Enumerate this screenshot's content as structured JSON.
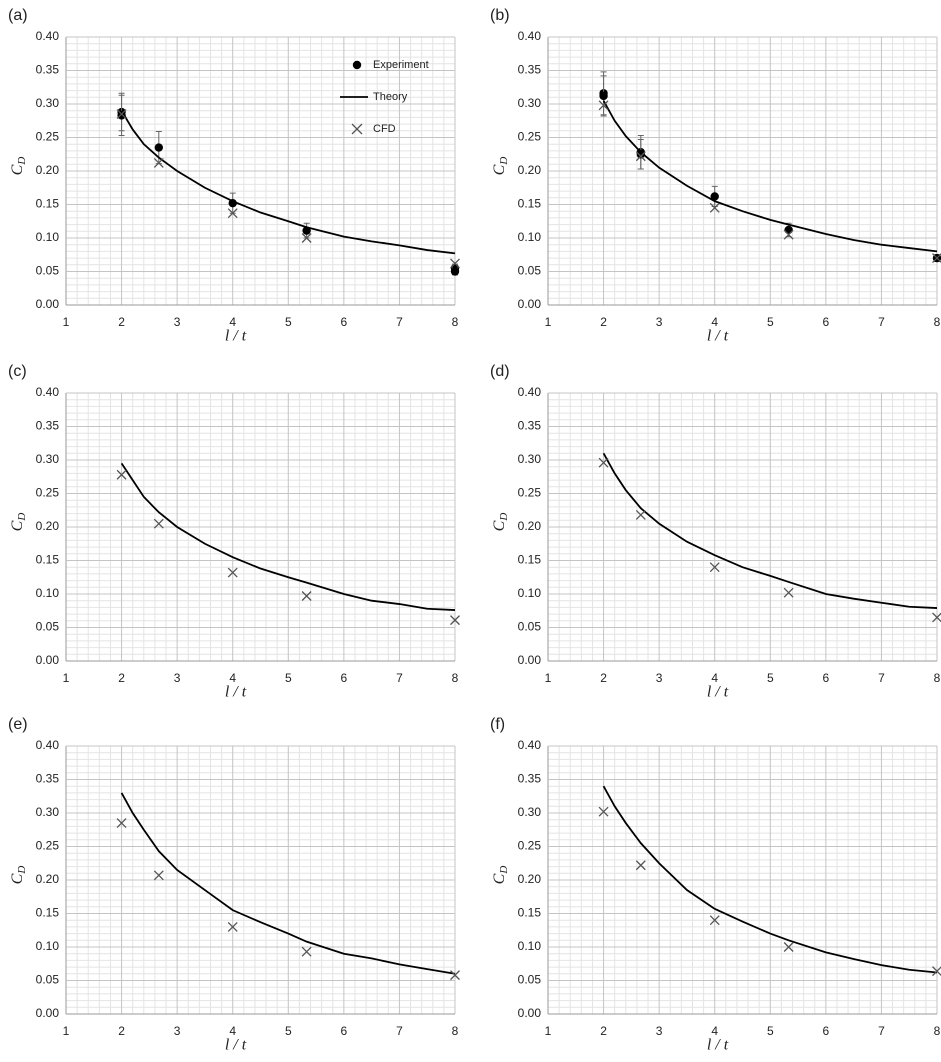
{
  "chart_data": [
    {
      "type": "scatter-line",
      "panel_label": "(a)",
      "ylabel": "C",
      "ylabel_sub": "D",
      "xlabel": "l / t",
      "xlim": [
        1,
        8
      ],
      "xticks": [
        1,
        2,
        3,
        4,
        5,
        6,
        7,
        8
      ],
      "ylim": [
        0,
        0.4
      ],
      "yticks": [
        {
          "value": 0,
          "label": "0.00"
        },
        {
          "value": 0.05,
          "label": "0.05"
        },
        {
          "value": 0.1,
          "label": "0.10"
        },
        {
          "value": 0.15,
          "label": "0.15"
        },
        {
          "value": 0.2,
          "label": "0.20"
        },
        {
          "value": 0.25,
          "label": "0.25"
        },
        {
          "value": 0.3,
          "label": "0.30"
        },
        {
          "value": 0.35,
          "label": "0.35"
        },
        {
          "value": 0.4,
          "label": "0.40"
        }
      ],
      "grid": true,
      "minor_grid": 5,
      "legend": "top-right",
      "series": [
        {
          "name": "Experiment",
          "type": "points",
          "color": "#000000",
          "x": [
            2,
            2,
            2.67,
            4,
            5.33,
            8,
            8
          ],
          "values": [
            0.288,
            0.283,
            0.235,
            0.152,
            0.111,
            0.055,
            0.05
          ],
          "errors": [
            0.028,
            0.03,
            0.024,
            0.015,
            0.011,
            0.006,
            0.005
          ]
        },
        {
          "name": "Theory",
          "type": "line",
          "color": "#000000",
          "x": [
            2,
            2.2,
            2.4,
            2.67,
            3,
            3.5,
            4,
            4.5,
            5,
            5.33,
            6,
            6.5,
            7,
            7.5,
            8
          ],
          "values": [
            0.29,
            0.262,
            0.24,
            0.22,
            0.2,
            0.175,
            0.155,
            0.138,
            0.125,
            0.116,
            0.102,
            0.095,
            0.089,
            0.082,
            0.077
          ]
        },
        {
          "name": "CFD",
          "type": "cross",
          "color": "#555555",
          "x": [
            2,
            2.67,
            4,
            5.33,
            8
          ],
          "values": [
            0.285,
            0.212,
            0.137,
            0.1,
            0.062
          ]
        }
      ]
    },
    {
      "type": "scatter-line",
      "panel_label": "(b)",
      "ylabel": "C",
      "ylabel_sub": "D",
      "xlabel": "l / t",
      "xlim": [
        1,
        8
      ],
      "xticks": [
        1,
        2,
        3,
        4,
        5,
        6,
        7,
        8
      ],
      "ylim": [
        0,
        0.4
      ],
      "yticks": [
        {
          "value": 0,
          "label": "0.00"
        },
        {
          "value": 0.05,
          "label": "0.05"
        },
        {
          "value": 0.1,
          "label": "0.10"
        },
        {
          "value": 0.15,
          "label": "0.15"
        },
        {
          "value": 0.2,
          "label": "0.20"
        },
        {
          "value": 0.25,
          "label": "0.25"
        },
        {
          "value": 0.3,
          "label": "0.30"
        },
        {
          "value": 0.35,
          "label": "0.35"
        },
        {
          "value": 0.4,
          "label": "0.40"
        }
      ],
      "grid": true,
      "minor_grid": 5,
      "series": [
        {
          "type": "points",
          "color": "#000000",
          "x": [
            2,
            2,
            2.67,
            2.67,
            4,
            5.33,
            8
          ],
          "values": [
            0.316,
            0.312,
            0.228,
            0.225,
            0.162,
            0.112,
            0.07
          ],
          "errors": [
            0.032,
            0.03,
            0.025,
            0.022,
            0.015,
            0.01,
            0.005
          ]
        },
        {
          "type": "line",
          "color": "#000000",
          "x": [
            2,
            2.2,
            2.4,
            2.67,
            3,
            3.5,
            4,
            4.5,
            5,
            5.33,
            6,
            6.5,
            7,
            7.5,
            8
          ],
          "values": [
            0.305,
            0.275,
            0.252,
            0.228,
            0.205,
            0.178,
            0.155,
            0.14,
            0.127,
            0.12,
            0.106,
            0.097,
            0.09,
            0.085,
            0.08
          ]
        },
        {
          "type": "cross",
          "color": "#555555",
          "x": [
            2,
            2.67,
            4,
            5.33,
            8
          ],
          "values": [
            0.298,
            0.222,
            0.145,
            0.105,
            0.07
          ]
        }
      ]
    },
    {
      "type": "scatter-line",
      "panel_label": "(c)",
      "ylabel": "C",
      "ylabel_sub": "D",
      "xlabel": "l / t",
      "xlim": [
        1,
        8
      ],
      "xticks": [
        1,
        2,
        3,
        4,
        5,
        6,
        7,
        8
      ],
      "ylim": [
        0,
        0.4
      ],
      "yticks": [
        {
          "value": 0,
          "label": "0.00"
        },
        {
          "value": 0.05,
          "label": "0.05"
        },
        {
          "value": 0.1,
          "label": "0.10"
        },
        {
          "value": 0.15,
          "label": "0.15"
        },
        {
          "value": 0.2,
          "label": "0.20"
        },
        {
          "value": 0.25,
          "label": "0.25"
        },
        {
          "value": 0.3,
          "label": "0.30"
        },
        {
          "value": 0.35,
          "label": "0.35"
        },
        {
          "value": 0.4,
          "label": "0.40"
        }
      ],
      "grid": true,
      "minor_grid": 5,
      "series": [
        {
          "type": "line",
          "color": "#000000",
          "x": [
            2,
            2.2,
            2.4,
            2.67,
            3,
            3.5,
            4,
            4.5,
            5,
            5.33,
            6,
            6.5,
            7,
            7.5,
            8
          ],
          "values": [
            0.295,
            0.27,
            0.245,
            0.222,
            0.2,
            0.175,
            0.155,
            0.138,
            0.125,
            0.117,
            0.1,
            0.09,
            0.085,
            0.078,
            0.076
          ]
        },
        {
          "type": "cross",
          "color": "#555555",
          "x": [
            2,
            2.67,
            4,
            5.33,
            8
          ],
          "values": [
            0.278,
            0.205,
            0.132,
            0.097,
            0.061
          ]
        }
      ]
    },
    {
      "type": "scatter-line",
      "panel_label": "(d)",
      "ylabel": "C",
      "ylabel_sub": "D",
      "xlabel": "l / t",
      "xlim": [
        1,
        8
      ],
      "xticks": [
        1,
        2,
        3,
        4,
        5,
        6,
        7,
        8
      ],
      "ylim": [
        0,
        0.4
      ],
      "yticks": [
        {
          "value": 0,
          "label": "0.00"
        },
        {
          "value": 0.05,
          "label": "0.05"
        },
        {
          "value": 0.1,
          "label": "0.10"
        },
        {
          "value": 0.15,
          "label": "0.15"
        },
        {
          "value": 0.2,
          "label": "0.20"
        },
        {
          "value": 0.25,
          "label": "0.25"
        },
        {
          "value": 0.3,
          "label": "0.30"
        },
        {
          "value": 0.35,
          "label": "0.35"
        },
        {
          "value": 0.4,
          "label": "0.40"
        }
      ],
      "grid": true,
      "minor_grid": 5,
      "series": [
        {
          "type": "line",
          "color": "#000000",
          "x": [
            2,
            2.2,
            2.4,
            2.67,
            3,
            3.5,
            4,
            4.5,
            5,
            5.33,
            6,
            6.5,
            7,
            7.5,
            8
          ],
          "values": [
            0.31,
            0.28,
            0.255,
            0.228,
            0.205,
            0.178,
            0.158,
            0.14,
            0.127,
            0.118,
            0.1,
            0.093,
            0.087,
            0.081,
            0.079
          ]
        },
        {
          "type": "cross",
          "color": "#555555",
          "x": [
            2,
            2.67,
            4,
            5.33,
            8
          ],
          "values": [
            0.296,
            0.218,
            0.14,
            0.102,
            0.065
          ]
        }
      ]
    },
    {
      "type": "scatter-line",
      "panel_label": "(e)",
      "ylabel": "C",
      "ylabel_sub": "D",
      "xlabel": "l / t",
      "xlim": [
        1,
        8
      ],
      "xticks": [
        1,
        2,
        3,
        4,
        5,
        6,
        7,
        8
      ],
      "ylim": [
        0,
        0.4
      ],
      "yticks": [
        {
          "value": 0,
          "label": "0.00"
        },
        {
          "value": 0.05,
          "label": "0.05"
        },
        {
          "value": 0.1,
          "label": "0.10"
        },
        {
          "value": 0.15,
          "label": "0.15"
        },
        {
          "value": 0.2,
          "label": "0.20"
        },
        {
          "value": 0.25,
          "label": "0.25"
        },
        {
          "value": 0.3,
          "label": "0.30"
        },
        {
          "value": 0.35,
          "label": "0.35"
        },
        {
          "value": 0.4,
          "label": "0.40"
        }
      ],
      "grid": true,
      "minor_grid": 5,
      "series": [
        {
          "type": "line",
          "color": "#000000",
          "x": [
            2,
            2.2,
            2.4,
            2.67,
            3,
            3.5,
            4,
            4.5,
            5,
            5.33,
            6,
            6.5,
            7,
            7.5,
            8
          ],
          "values": [
            0.33,
            0.3,
            0.275,
            0.243,
            0.215,
            0.185,
            0.155,
            0.137,
            0.12,
            0.108,
            0.09,
            0.083,
            0.074,
            0.067,
            0.06
          ]
        },
        {
          "type": "cross",
          "color": "#555555",
          "x": [
            2,
            2.67,
            4,
            5.33,
            8
          ],
          "values": [
            0.285,
            0.207,
            0.13,
            0.093,
            0.058
          ]
        }
      ]
    },
    {
      "type": "scatter-line",
      "panel_label": "(f)",
      "ylabel": "C",
      "ylabel_sub": "D",
      "xlabel": "l / t",
      "xlim": [
        1,
        8
      ],
      "xticks": [
        1,
        2,
        3,
        4,
        5,
        6,
        7,
        8
      ],
      "ylim": [
        0,
        0.4
      ],
      "yticks": [
        {
          "value": 0,
          "label": "0.00"
        },
        {
          "value": 0.05,
          "label": "0.05"
        },
        {
          "value": 0.1,
          "label": "0.10"
        },
        {
          "value": 0.15,
          "label": "0.15"
        },
        {
          "value": 0.2,
          "label": "0.20"
        },
        {
          "value": 0.25,
          "label": "0.25"
        },
        {
          "value": 0.3,
          "label": "0.30"
        },
        {
          "value": 0.35,
          "label": "0.35"
        },
        {
          "value": 0.4,
          "label": "0.40"
        }
      ],
      "grid": true,
      "minor_grid": 5,
      "series": [
        {
          "type": "line",
          "color": "#000000",
          "x": [
            2,
            2.2,
            2.4,
            2.67,
            3,
            3.5,
            4,
            4.5,
            5,
            5.33,
            6,
            6.5,
            7,
            7.5,
            8
          ],
          "values": [
            0.34,
            0.31,
            0.285,
            0.255,
            0.225,
            0.185,
            0.157,
            0.138,
            0.12,
            0.11,
            0.092,
            0.082,
            0.073,
            0.066,
            0.062
          ]
        },
        {
          "type": "cross",
          "color": "#555555",
          "x": [
            2,
            2.67,
            4,
            5.33,
            8
          ],
          "values": [
            0.302,
            0.222,
            0.14,
            0.1,
            0.064
          ]
        }
      ]
    }
  ]
}
